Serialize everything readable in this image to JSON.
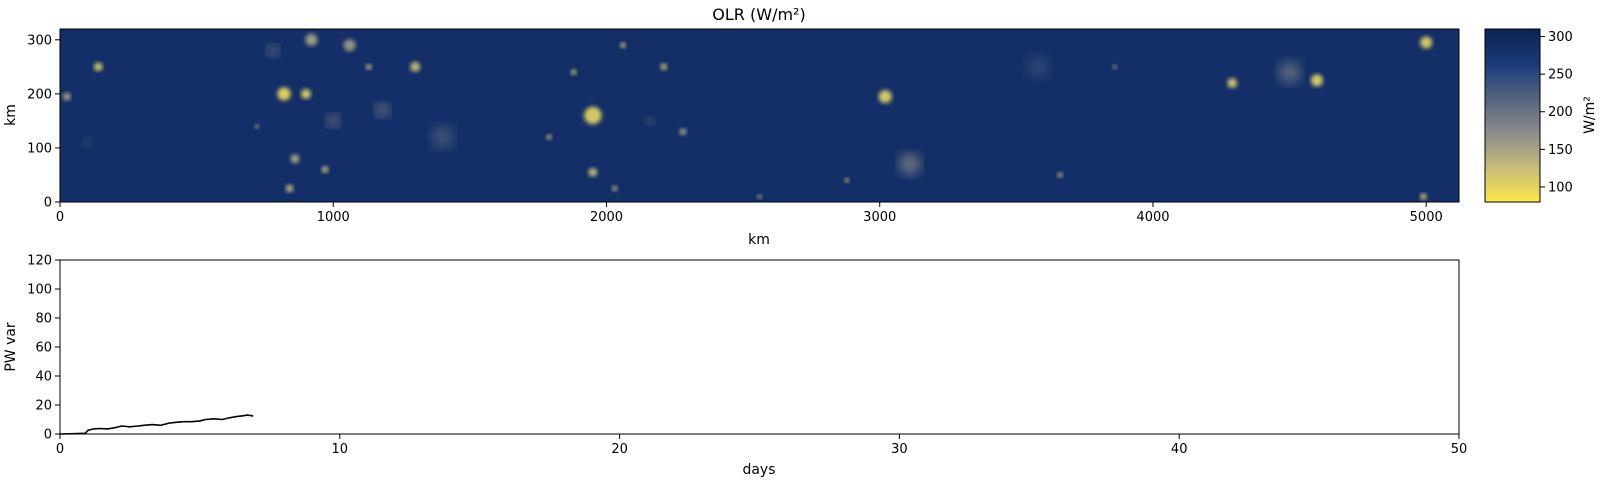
{
  "chart_data": [
    {
      "type": "heatmap",
      "title": "OLR (W/m²)",
      "xlabel": "km",
      "ylabel": "km",
      "xlim": [
        0,
        5120
      ],
      "ylim": [
        0,
        320
      ],
      "xticks": [
        "0",
        "1000",
        "2000",
        "3000",
        "4000",
        "5000"
      ],
      "yticks": [
        "0",
        "100",
        "200",
        "300"
      ],
      "colorbar": {
        "label": "W/m²",
        "range": [
          80,
          310
        ],
        "ticks": [
          "100",
          "150",
          "200",
          "250",
          "300"
        ],
        "colors": [
          "#fde84a",
          "#c5bb7a",
          "#8c8c8c",
          "#52637d",
          "#1a3a7a",
          "#0d2250"
        ]
      },
      "background_value": 285,
      "cells": [
        {
          "x": 25,
          "y": 195,
          "r": 14,
          "v": 140
        },
        {
          "x": 140,
          "y": 250,
          "r": 16,
          "v": 110
        },
        {
          "x": 780,
          "y": 280,
          "r": 20,
          "v": 170
        },
        {
          "x": 820,
          "y": 200,
          "r": 24,
          "v": 95
        },
        {
          "x": 900,
          "y": 200,
          "r": 18,
          "v": 100
        },
        {
          "x": 920,
          "y": 300,
          "r": 22,
          "v": 150
        },
        {
          "x": 1000,
          "y": 150,
          "r": 22,
          "v": 170
        },
        {
          "x": 1060,
          "y": 290,
          "r": 22,
          "v": 160
        },
        {
          "x": 1130,
          "y": 250,
          "r": 10,
          "v": 110
        },
        {
          "x": 1180,
          "y": 170,
          "r": 24,
          "v": 170
        },
        {
          "x": 1300,
          "y": 250,
          "r": 18,
          "v": 120
        },
        {
          "x": 1950,
          "y": 160,
          "r": 32,
          "v": 105
        },
        {
          "x": 1880,
          "y": 240,
          "r": 10,
          "v": 110
        },
        {
          "x": 2060,
          "y": 290,
          "r": 10,
          "v": 110
        },
        {
          "x": 2210,
          "y": 250,
          "r": 12,
          "v": 120
        },
        {
          "x": 1950,
          "y": 55,
          "r": 16,
          "v": 120
        },
        {
          "x": 3020,
          "y": 195,
          "r": 24,
          "v": 105
        },
        {
          "x": 3110,
          "y": 70,
          "r": 38,
          "v": 170
        },
        {
          "x": 4290,
          "y": 220,
          "r": 18,
          "v": 110
        },
        {
          "x": 4600,
          "y": 225,
          "r": 22,
          "v": 105
        },
        {
          "x": 4500,
          "y": 240,
          "r": 40,
          "v": 190
        },
        {
          "x": 5000,
          "y": 295,
          "r": 22,
          "v": 105
        },
        {
          "x": 4990,
          "y": 10,
          "r": 12,
          "v": 110
        },
        {
          "x": 860,
          "y": 80,
          "r": 16,
          "v": 140
        },
        {
          "x": 970,
          "y": 60,
          "r": 12,
          "v": 120
        },
        {
          "x": 840,
          "y": 25,
          "r": 14,
          "v": 130
        },
        {
          "x": 1790,
          "y": 120,
          "r": 10,
          "v": 130
        },
        {
          "x": 2280,
          "y": 130,
          "r": 12,
          "v": 140
        },
        {
          "x": 2160,
          "y": 150,
          "r": 14,
          "v": 180
        },
        {
          "x": 3660,
          "y": 50,
          "r": 10,
          "v": 140
        },
        {
          "x": 2880,
          "y": 40,
          "r": 8,
          "v": 100
        },
        {
          "x": 2030,
          "y": 25,
          "r": 10,
          "v": 130
        },
        {
          "x": 3860,
          "y": 250,
          "r": 8,
          "v": 150
        },
        {
          "x": 720,
          "y": 140,
          "r": 8,
          "v": 150
        },
        {
          "x": 100,
          "y": 110,
          "r": 14,
          "v": 200
        },
        {
          "x": 1400,
          "y": 120,
          "r": 40,
          "v": 220
        },
        {
          "x": 2560,
          "y": 10,
          "r": 8,
          "v": 140
        },
        {
          "x": 3580,
          "y": 250,
          "r": 40,
          "v": 240
        }
      ]
    },
    {
      "type": "line",
      "xlabel": "days",
      "ylabel": "PW var",
      "xlim": [
        0,
        50
      ],
      "ylim": [
        0,
        120
      ],
      "xticks": [
        "0",
        "10",
        "20",
        "30",
        "40",
        "50"
      ],
      "yticks": [
        "0",
        "20",
        "40",
        "60",
        "80",
        "100",
        "120"
      ],
      "series": [
        {
          "color": "#000000",
          "x": [
            0,
            0.5,
            0.9,
            1.0,
            1.2,
            1.4,
            1.7,
            2.0,
            2.2,
            2.5,
            2.8,
            3.0,
            3.3,
            3.6,
            3.9,
            4.1,
            4.4,
            4.7,
            5.0,
            5.2,
            5.5,
            5.8,
            6.0,
            6.3,
            6.5,
            6.7,
            6.9
          ],
          "y": [
            0,
            0.2,
            0.5,
            2.5,
            3.5,
            3.8,
            3.5,
            4.5,
            5.5,
            5.0,
            5.5,
            6.0,
            6.5,
            6.0,
            7.5,
            8.0,
            8.5,
            8.5,
            9.0,
            10.0,
            10.5,
            10.0,
            11.0,
            12.0,
            12.5,
            13.0,
            12.5
          ]
        }
      ]
    }
  ]
}
